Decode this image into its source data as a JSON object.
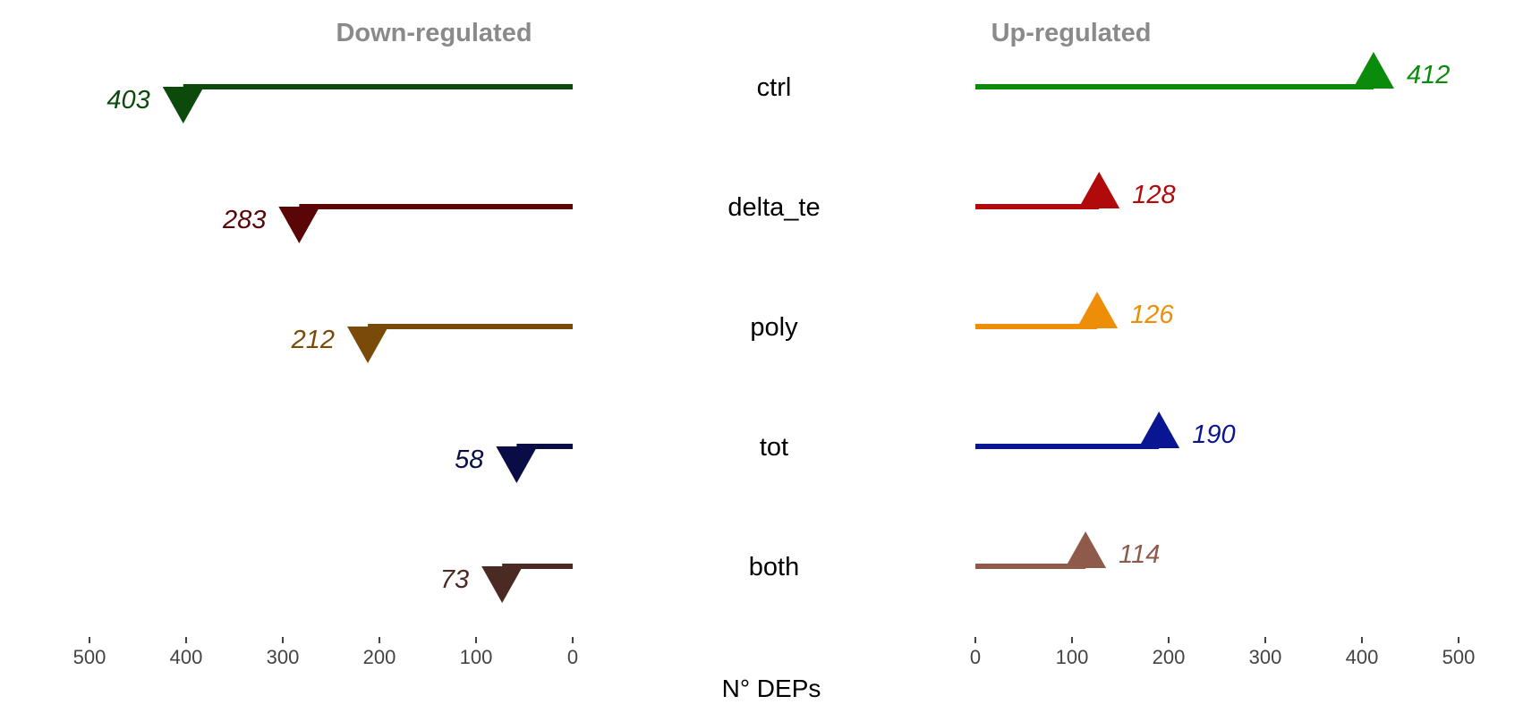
{
  "chart_data": {
    "type": "bar",
    "xlabel": "N° DEPs",
    "xlim": [
      0,
      500
    ],
    "ticks": [
      "500",
      "400",
      "300",
      "200",
      "100",
      "0"
    ],
    "ticks_right": [
      "0",
      "100",
      "200",
      "300",
      "400",
      "500"
    ],
    "down_title": "Down-regulated",
    "up_title": "Up-regulated",
    "categories": [
      "ctrl",
      "delta_te",
      "poly",
      "tot",
      "both"
    ],
    "down": [
      {
        "value": 403,
        "label": "403",
        "color": "#0b4a0b"
      },
      {
        "value": 283,
        "label": "283",
        "color": "#5a0606"
      },
      {
        "value": 212,
        "label": "212",
        "color": "#7a4a08"
      },
      {
        "value": 58,
        "label": "58",
        "color": "#0a0d45"
      },
      {
        "value": 73,
        "label": "73",
        "color": "#4a2a22"
      }
    ],
    "up": [
      {
        "value": 412,
        "label": "412",
        "color": "#0b8b0b"
      },
      {
        "value": 128,
        "label": "128",
        "color": "#b00a0a"
      },
      {
        "value": 126,
        "label": "126",
        "color": "#ee8e08"
      },
      {
        "value": 190,
        "label": "190",
        "color": "#0a1591"
      },
      {
        "value": 114,
        "label": "114",
        "color": "#8e5a4a"
      }
    ],
    "grid": false,
    "legend": "none"
  }
}
